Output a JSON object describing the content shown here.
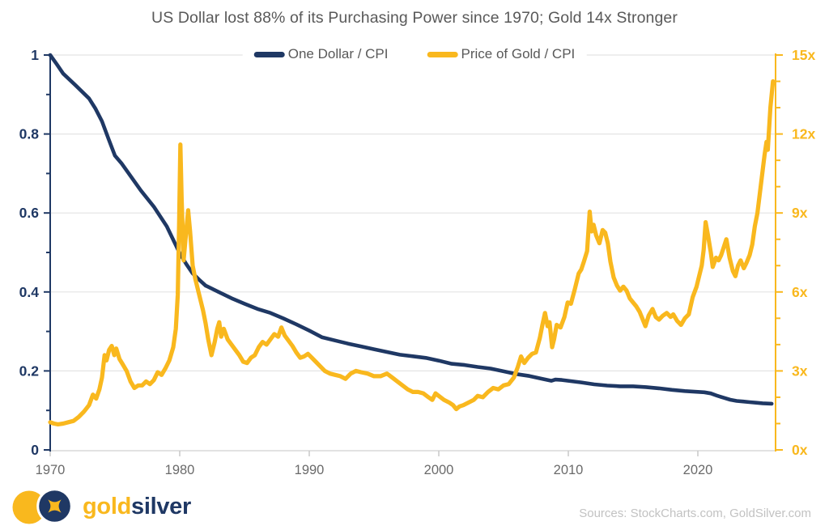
{
  "header": {
    "title": "US Dollar lost 88% of its Purchasing Power since 1970; Gold 14x Stronger"
  },
  "footer": {
    "logo_gold_text": "gold",
    "logo_silver_text": "silver",
    "sources": "Sources: StockCharts.com, GoldSilver.com"
  },
  "colors": {
    "navy": "#1F3864",
    "gold": "#F9B81E",
    "title_text": "#595959",
    "x_label": "#6A6A6A",
    "grid": "#E4E4E4",
    "axis_gray": "#D8D8D8",
    "tick_gray": "#C9C9C9",
    "source_text": "#C2C2C2",
    "background": "#FFFFFF"
  },
  "chart_data": {
    "type": "line",
    "title": "US Dollar lost 88% of its Purchasing Power since 1970; Gold 14x Stronger",
    "legend_position": "top-center",
    "grid": "horizontal-only",
    "x_axis": {
      "range": [
        1970,
        2026
      ],
      "ticks": [
        1970,
        1980,
        1990,
        2000,
        2010,
        2020
      ]
    },
    "left_axis": {
      "range": [
        0,
        1
      ],
      "color": "#1F3864",
      "ticks": [
        {
          "value": 1,
          "label": "1"
        },
        {
          "value": 0.8,
          "label": "0.8"
        },
        {
          "value": 0.6,
          "label": "0.6"
        },
        {
          "value": 0.4,
          "label": "0.4"
        },
        {
          "value": 0.2,
          "label": "0.2"
        },
        {
          "value": 0,
          "label": "0"
        }
      ],
      "minor_step": 0.1,
      "gridlines": [
        0.2,
        0.4,
        0.6,
        0.8,
        1
      ]
    },
    "right_axis": {
      "range": [
        0,
        15
      ],
      "color": "#F9B81E",
      "ticks": [
        {
          "value": 15,
          "label": "15x"
        },
        {
          "value": 12,
          "label": "12x"
        },
        {
          "value": 9,
          "label": "9x"
        },
        {
          "value": 6,
          "label": "6x"
        },
        {
          "value": 3,
          "label": "3x"
        },
        {
          "value": 0,
          "label": "0x"
        }
      ],
      "minor_step": 1
    },
    "series": [
      {
        "name": "One Dollar / CPI",
        "axis": "left",
        "color": "#1F3864",
        "points": [
          [
            1970,
            1.0
          ],
          [
            1970.5,
            0.977
          ],
          [
            1971,
            0.953
          ],
          [
            1972,
            0.922
          ],
          [
            1973,
            0.89
          ],
          [
            1973.5,
            0.864
          ],
          [
            1974,
            0.832
          ],
          [
            1974.5,
            0.788
          ],
          [
            1975,
            0.745
          ],
          [
            1975.5,
            0.726
          ],
          [
            1976,
            0.703
          ],
          [
            1977,
            0.657
          ],
          [
            1978,
            0.616
          ],
          [
            1979,
            0.566
          ],
          [
            1979.5,
            0.532
          ],
          [
            1980,
            0.498
          ],
          [
            1980.5,
            0.471
          ],
          [
            1981,
            0.447
          ],
          [
            1981.5,
            0.431
          ],
          [
            1982,
            0.416
          ],
          [
            1983,
            0.4
          ],
          [
            1984,
            0.384
          ],
          [
            1985,
            0.37
          ],
          [
            1986,
            0.357
          ],
          [
            1987,
            0.347
          ],
          [
            1988,
            0.333
          ],
          [
            1989,
            0.318
          ],
          [
            1990,
            0.302
          ],
          [
            1991,
            0.285
          ],
          [
            1992,
            0.277
          ],
          [
            1993,
            0.269
          ],
          [
            1994,
            0.262
          ],
          [
            1995,
            0.255
          ],
          [
            1996,
            0.248
          ],
          [
            1997,
            0.241
          ],
          [
            1998,
            0.237
          ],
          [
            1999,
            0.233
          ],
          [
            2000,
            0.226
          ],
          [
            2001,
            0.218
          ],
          [
            2002,
            0.215
          ],
          [
            2003,
            0.21
          ],
          [
            2004,
            0.206
          ],
          [
            2005,
            0.199
          ],
          [
            2006,
            0.192
          ],
          [
            2007,
            0.187
          ],
          [
            2008,
            0.18
          ],
          [
            2008.7,
            0.175
          ],
          [
            2009,
            0.178
          ],
          [
            2009.5,
            0.177
          ],
          [
            2010,
            0.175
          ],
          [
            2011,
            0.171
          ],
          [
            2012,
            0.166
          ],
          [
            2013,
            0.163
          ],
          [
            2014,
            0.161
          ],
          [
            2015,
            0.161
          ],
          [
            2016,
            0.159
          ],
          [
            2017,
            0.156
          ],
          [
            2018,
            0.152
          ],
          [
            2019,
            0.149
          ],
          [
            2020,
            0.147
          ],
          [
            2020.5,
            0.146
          ],
          [
            2021,
            0.143
          ],
          [
            2021.5,
            0.137
          ],
          [
            2022,
            0.132
          ],
          [
            2022.5,
            0.127
          ],
          [
            2023,
            0.124
          ],
          [
            2023.5,
            0.1225
          ],
          [
            2024,
            0.121
          ],
          [
            2024.5,
            0.1195
          ],
          [
            2025,
            0.118
          ],
          [
            2025.7,
            0.117
          ]
        ]
      },
      {
        "name": "Price of Gold / CPI",
        "axis": "right",
        "color": "#F9B81E",
        "points": [
          [
            1970,
            1.05
          ],
          [
            1970.3,
            1.0
          ],
          [
            1970.6,
            0.97
          ],
          [
            1971,
            1.0
          ],
          [
            1971.4,
            1.05
          ],
          [
            1971.8,
            1.1
          ],
          [
            1972.2,
            1.25
          ],
          [
            1972.6,
            1.45
          ],
          [
            1973,
            1.7
          ],
          [
            1973.3,
            2.1
          ],
          [
            1973.55,
            1.95
          ],
          [
            1973.8,
            2.3
          ],
          [
            1974,
            2.75
          ],
          [
            1974.2,
            3.6
          ],
          [
            1974.35,
            3.4
          ],
          [
            1974.55,
            3.8
          ],
          [
            1974.75,
            3.95
          ],
          [
            1974.95,
            3.6
          ],
          [
            1975.1,
            3.85
          ],
          [
            1975.35,
            3.45
          ],
          [
            1975.6,
            3.25
          ],
          [
            1975.9,
            3.0
          ],
          [
            1976.2,
            2.6
          ],
          [
            1976.5,
            2.35
          ],
          [
            1976.8,
            2.45
          ],
          [
            1977.1,
            2.45
          ],
          [
            1977.4,
            2.6
          ],
          [
            1977.7,
            2.5
          ],
          [
            1978,
            2.65
          ],
          [
            1978.3,
            2.95
          ],
          [
            1978.6,
            2.85
          ],
          [
            1978.9,
            3.1
          ],
          [
            1979.2,
            3.4
          ],
          [
            1979.5,
            3.9
          ],
          [
            1979.7,
            4.6
          ],
          [
            1979.85,
            5.9
          ],
          [
            1979.95,
            8.5
          ],
          [
            1980.05,
            11.6
          ],
          [
            1980.15,
            9.5
          ],
          [
            1980.3,
            7.2
          ],
          [
            1980.5,
            8.3
          ],
          [
            1980.65,
            9.1
          ],
          [
            1980.8,
            8.3
          ],
          [
            1981,
            7.0
          ],
          [
            1981.2,
            6.5
          ],
          [
            1981.5,
            5.9
          ],
          [
            1981.8,
            5.3
          ],
          [
            1982,
            4.8
          ],
          [
            1982.2,
            4.2
          ],
          [
            1982.45,
            3.6
          ],
          [
            1982.7,
            4.1
          ],
          [
            1982.9,
            4.6
          ],
          [
            1983.05,
            4.85
          ],
          [
            1983.2,
            4.3
          ],
          [
            1983.4,
            4.6
          ],
          [
            1983.7,
            4.2
          ],
          [
            1984,
            4.0
          ],
          [
            1984.3,
            3.8
          ],
          [
            1984.6,
            3.6
          ],
          [
            1984.9,
            3.35
          ],
          [
            1985.2,
            3.3
          ],
          [
            1985.5,
            3.5
          ],
          [
            1985.8,
            3.6
          ],
          [
            1986.1,
            3.9
          ],
          [
            1986.4,
            4.1
          ],
          [
            1986.7,
            4.0
          ],
          [
            1987,
            4.2
          ],
          [
            1987.3,
            4.4
          ],
          [
            1987.6,
            4.3
          ],
          [
            1987.85,
            4.65
          ],
          [
            1988.1,
            4.35
          ],
          [
            1988.4,
            4.15
          ],
          [
            1988.7,
            3.95
          ],
          [
            1989,
            3.7
          ],
          [
            1989.3,
            3.5
          ],
          [
            1989.6,
            3.55
          ],
          [
            1989.9,
            3.65
          ],
          [
            1990.2,
            3.5
          ],
          [
            1990.5,
            3.35
          ],
          [
            1990.8,
            3.2
          ],
          [
            1991.2,
            3.0
          ],
          [
            1991.6,
            2.9
          ],
          [
            1992,
            2.85
          ],
          [
            1992.4,
            2.8
          ],
          [
            1992.8,
            2.7
          ],
          [
            1993.2,
            2.9
          ],
          [
            1993.6,
            3.0
          ],
          [
            1994,
            2.95
          ],
          [
            1994.5,
            2.9
          ],
          [
            1995,
            2.8
          ],
          [
            1995.5,
            2.8
          ],
          [
            1996,
            2.9
          ],
          [
            1996.4,
            2.75
          ],
          [
            1996.8,
            2.6
          ],
          [
            1997.2,
            2.45
          ],
          [
            1997.6,
            2.3
          ],
          [
            1998,
            2.2
          ],
          [
            1998.4,
            2.2
          ],
          [
            1998.8,
            2.15
          ],
          [
            1999.2,
            2.0
          ],
          [
            1999.5,
            1.9
          ],
          [
            1999.75,
            2.15
          ],
          [
            2000,
            2.05
          ],
          [
            2000.4,
            1.9
          ],
          [
            2000.8,
            1.8
          ],
          [
            2001.1,
            1.7
          ],
          [
            2001.35,
            1.55
          ],
          [
            2001.6,
            1.65
          ],
          [
            2001.9,
            1.7
          ],
          [
            2002.3,
            1.8
          ],
          [
            2002.7,
            1.9
          ],
          [
            2003,
            2.05
          ],
          [
            2003.4,
            2.0
          ],
          [
            2003.8,
            2.2
          ],
          [
            2004.2,
            2.35
          ],
          [
            2004.6,
            2.3
          ],
          [
            2005,
            2.45
          ],
          [
            2005.4,
            2.5
          ],
          [
            2005.8,
            2.75
          ],
          [
            2006.1,
            3.15
          ],
          [
            2006.35,
            3.55
          ],
          [
            2006.6,
            3.3
          ],
          [
            2006.9,
            3.5
          ],
          [
            2007.2,
            3.65
          ],
          [
            2007.5,
            3.7
          ],
          [
            2007.8,
            4.25
          ],
          [
            2008,
            4.75
          ],
          [
            2008.2,
            5.2
          ],
          [
            2008.4,
            4.7
          ],
          [
            2008.55,
            4.85
          ],
          [
            2008.75,
            3.9
          ],
          [
            2008.9,
            4.2
          ],
          [
            2009.1,
            4.75
          ],
          [
            2009.4,
            4.65
          ],
          [
            2009.7,
            5.05
          ],
          [
            2009.95,
            5.6
          ],
          [
            2010.2,
            5.55
          ],
          [
            2010.5,
            6.1
          ],
          [
            2010.8,
            6.7
          ],
          [
            2011,
            6.85
          ],
          [
            2011.2,
            7.15
          ],
          [
            2011.45,
            7.55
          ],
          [
            2011.65,
            9.05
          ],
          [
            2011.8,
            8.3
          ],
          [
            2011.95,
            8.55
          ],
          [
            2012.15,
            8.15
          ],
          [
            2012.4,
            7.85
          ],
          [
            2012.65,
            8.35
          ],
          [
            2012.85,
            8.25
          ],
          [
            2013.05,
            7.85
          ],
          [
            2013.25,
            7.15
          ],
          [
            2013.5,
            6.55
          ],
          [
            2013.75,
            6.25
          ],
          [
            2014,
            6.05
          ],
          [
            2014.25,
            6.2
          ],
          [
            2014.5,
            6.05
          ],
          [
            2014.75,
            5.75
          ],
          [
            2015,
            5.6
          ],
          [
            2015.25,
            5.45
          ],
          [
            2015.5,
            5.25
          ],
          [
            2015.75,
            4.95
          ],
          [
            2015.95,
            4.7
          ],
          [
            2016.2,
            5.1
          ],
          [
            2016.5,
            5.35
          ],
          [
            2016.75,
            5.05
          ],
          [
            2017,
            4.95
          ],
          [
            2017.3,
            5.1
          ],
          [
            2017.6,
            5.2
          ],
          [
            2017.9,
            5.05
          ],
          [
            2018.1,
            5.15
          ],
          [
            2018.4,
            4.9
          ],
          [
            2018.7,
            4.75
          ],
          [
            2019,
            5.0
          ],
          [
            2019.3,
            5.15
          ],
          [
            2019.6,
            5.8
          ],
          [
            2019.9,
            6.2
          ],
          [
            2020.1,
            6.6
          ],
          [
            2020.3,
            7.0
          ],
          [
            2020.45,
            7.6
          ],
          [
            2020.6,
            8.65
          ],
          [
            2020.8,
            8.1
          ],
          [
            2021,
            7.5
          ],
          [
            2021.15,
            6.95
          ],
          [
            2021.4,
            7.3
          ],
          [
            2021.6,
            7.2
          ],
          [
            2021.8,
            7.4
          ],
          [
            2022,
            7.7
          ],
          [
            2022.2,
            8.0
          ],
          [
            2022.45,
            7.3
          ],
          [
            2022.7,
            6.8
          ],
          [
            2022.9,
            6.6
          ],
          [
            2023.1,
            7.0
          ],
          [
            2023.3,
            7.2
          ],
          [
            2023.55,
            6.9
          ],
          [
            2023.75,
            7.1
          ],
          [
            2024,
            7.4
          ],
          [
            2024.2,
            7.8
          ],
          [
            2024.4,
            8.5
          ],
          [
            2024.6,
            9.0
          ],
          [
            2024.8,
            9.8
          ],
          [
            2025,
            10.6
          ],
          [
            2025.15,
            11.2
          ],
          [
            2025.3,
            11.7
          ],
          [
            2025.4,
            11.4
          ],
          [
            2025.5,
            12.2
          ],
          [
            2025.6,
            13.0
          ],
          [
            2025.8,
            14.0
          ]
        ]
      }
    ]
  }
}
